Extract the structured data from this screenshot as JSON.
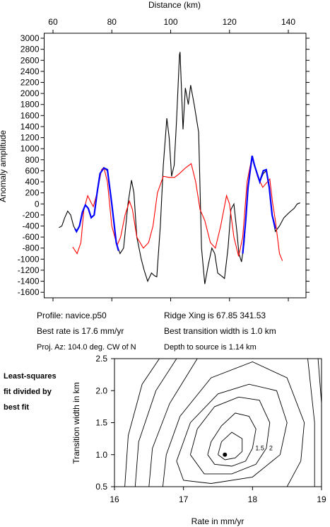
{
  "chart_data": [
    {
      "type": "line",
      "xlabel": "Distance (km)",
      "ylabel": "Anomaly amplitude",
      "xlim": [
        57,
        146
      ],
      "ylim": [
        -1700,
        3090
      ],
      "xticks": [
        60,
        80,
        100,
        120,
        140
      ],
      "yticks": [
        -1600,
        -1400,
        -1200,
        -1000,
        -800,
        -600,
        -400,
        -200,
        0,
        200,
        400,
        600,
        800,
        1000,
        1200,
        1400,
        1600,
        1800,
        2000,
        2200,
        2400,
        2600,
        2800,
        3000
      ],
      "series": [
        {
          "color": "#000000",
          "x": [
            62,
            63,
            64,
            65,
            66,
            67,
            68,
            69,
            70,
            71,
            72,
            73,
            74,
            75,
            76,
            77.3,
            78.5,
            80,
            81.5,
            82.8,
            84,
            85.5,
            86.7,
            87.5,
            88.5,
            90,
            91,
            92.2,
            93.5,
            94.5,
            95.3,
            96.5,
            97.5,
            98.7,
            99.5,
            100.3,
            101.2,
            102,
            103,
            103.2,
            104.2,
            105,
            106,
            106.8,
            108,
            109.5,
            110.5,
            111.6,
            112.8,
            114,
            115,
            116,
            117.2,
            118.3,
            119.5,
            120.5,
            121.5,
            122.5,
            123.2,
            124.1,
            125,
            126.3,
            127.7,
            128.5,
            130.3,
            131.5,
            132.5,
            133.5,
            134.5,
            135.6,
            137,
            138.5,
            140.4,
            142,
            143,
            144
          ],
          "values": [
            -430,
            -400,
            -250,
            -130,
            -200,
            -400,
            -500,
            -400,
            -150,
            -20,
            -80,
            -250,
            -200,
            200,
            550,
            650,
            600,
            0,
            -700,
            -900,
            -800,
            0,
            430,
            200,
            -600,
            -1000,
            -1200,
            -1400,
            -1250,
            -1300,
            -1320,
            -400,
            700,
            1550,
            1200,
            500,
            700,
            1500,
            2700,
            2750,
            1350,
            2100,
            1800,
            2150,
            1800,
            1300,
            -800,
            -1450,
            -1100,
            -800,
            -900,
            -1250,
            -1300,
            -1350,
            -800,
            -100,
            0,
            -500,
            -900,
            -1050,
            -700,
            300,
            850,
            700,
            400,
            550,
            600,
            300,
            -200,
            -500,
            -400,
            -250,
            -150,
            -80,
            0,
            20
          ]
        },
        {
          "color": "#ff0000",
          "x": [
            66.7,
            68.2,
            69.5,
            70.5,
            71.8,
            73,
            73.7,
            75,
            76.5,
            77.3,
            78.5,
            80,
            81.8,
            83,
            84.5,
            86,
            87,
            88.5,
            90.7,
            92.5,
            94,
            95.5,
            97.5,
            99.5,
            101.3,
            103,
            105,
            107,
            108.5,
            110,
            111.6,
            113.5,
            115.2,
            117,
            119,
            120,
            121.5,
            123.1,
            124.5,
            126,
            127.7,
            129.5,
            131.3,
            133.7,
            134.7,
            135.6,
            137,
            138
          ],
          "values": [
            -780,
            -900,
            -700,
            -100,
            150,
            20,
            -50,
            200,
            620,
            660,
            400,
            -400,
            -750,
            -600,
            -200,
            50,
            -100,
            -600,
            -800,
            -700,
            -400,
            200,
            500,
            480,
            480,
            550,
            650,
            730,
            400,
            -100,
            -300,
            -700,
            -800,
            -400,
            150,
            0,
            -600,
            -950,
            -600,
            400,
            870,
            500,
            300,
            450,
            0,
            -300,
            -900,
            -1030
          ]
        },
        {
          "color": "#0000ff",
          "x": [
            67.5,
            68,
            69,
            70,
            71,
            72,
            73,
            74,
            75,
            76,
            77.3,
            78.5,
            80,
            81.5,
            82.3,
            null,
            124.5,
            125.5,
            126.3,
            127.7,
            128.5,
            130.3,
            131.5,
            132.5,
            133.5,
            134.5,
            135.6
          ],
          "values": [
            -450,
            -500,
            -400,
            -150,
            -20,
            -80,
            -250,
            -200,
            200,
            550,
            650,
            620,
            0,
            -700,
            -850,
            null,
            -900,
            -300,
            300,
            870,
            700,
            400,
            600,
            620,
            300,
            -200,
            -450
          ]
        }
      ],
      "annotations": [
        "Profile: navice.p50",
        "Ridge Xing is 67.85 341.53",
        "Best rate is 17.6 mm/yr",
        "Best transition width is 1.0 km",
        "Proj. Az: 104.0 deg. CW of N",
        "Depth to source is  1.14 km"
      ]
    },
    {
      "type": "contour",
      "xlabel": "Rate in mm/yr",
      "ylabel": "Transition width in km",
      "xlim": [
        16,
        19
      ],
      "ylim": [
        0.5,
        2.5
      ],
      "xticks": [
        16,
        17,
        18,
        19
      ],
      "yticks": [
        0.5,
        {
          "value": 1,
          "label": "1.0"
        },
        1.5,
        {
          "value": 2,
          "label": "2.0"
        },
        2.5
      ],
      "annotations": [
        "Least-squares",
        "fit divided by",
        "best fit"
      ],
      "best_fit": {
        "x": 17.6,
        "y": 1.0
      },
      "contours": [
        {
          "x": [
            17.5,
            17.6,
            17.75,
            17.85,
            17.85,
            17.7,
            17.55,
            17.5
          ],
          "y": [
            1.0,
            0.92,
            0.95,
            1.05,
            1.25,
            1.35,
            1.2,
            1.0
          ]
        },
        {
          "level": 1.5,
          "x": [
            17.35,
            17.45,
            17.7,
            17.9,
            18.0,
            18.05,
            17.95,
            17.75,
            17.55,
            17.4,
            17.35
          ],
          "y": [
            1.0,
            0.85,
            0.82,
            0.9,
            1.1,
            1.4,
            1.6,
            1.65,
            1.45,
            1.2,
            1.0
          ]
        },
        {
          "level": 2,
          "x": [
            17.1,
            17.3,
            17.7,
            18.05,
            18.2,
            18.25,
            18.1,
            17.8,
            17.45,
            17.2,
            17.1
          ],
          "y": [
            1.0,
            0.7,
            0.7,
            0.85,
            1.1,
            1.5,
            1.85,
            1.9,
            1.75,
            1.4,
            1.0
          ]
        },
        {
          "x": [
            16.9,
            17.0,
            17.4,
            18.0,
            18.4,
            18.5,
            18.35,
            17.95,
            17.5,
            17.1,
            16.9
          ],
          "y": [
            0.9,
            0.6,
            0.55,
            0.65,
            1.0,
            1.5,
            2.0,
            2.1,
            1.95,
            1.5,
            0.9
          ]
        },
        {
          "x": [
            16.7,
            16.75,
            16.95,
            17.4,
            18.0,
            18.5,
            18.75,
            18.7,
            18.5
          ],
          "y": [
            0.5,
            1.0,
            1.6,
            2.2,
            2.45,
            2.2,
            1.5,
            0.9,
            0.5
          ]
        },
        {
          "x": [
            16.5,
            16.55,
            16.8,
            17.2,
            null,
            18.8,
            18.9,
            18.9
          ],
          "y": [
            0.5,
            1.1,
            1.8,
            2.5,
            null,
            2.5,
            1.5,
            0.5
          ]
        },
        {
          "x": [
            16.3,
            16.35,
            16.6,
            16.9,
            null,
            18.95,
            19.0
          ],
          "y": [
            0.5,
            1.2,
            2.0,
            2.5,
            null,
            2.5,
            1.8
          ]
        },
        {
          "x": [
            16.15,
            16.2,
            16.4,
            16.65
          ],
          "y": [
            0.5,
            1.3,
            2.1,
            2.5
          ]
        }
      ]
    }
  ]
}
